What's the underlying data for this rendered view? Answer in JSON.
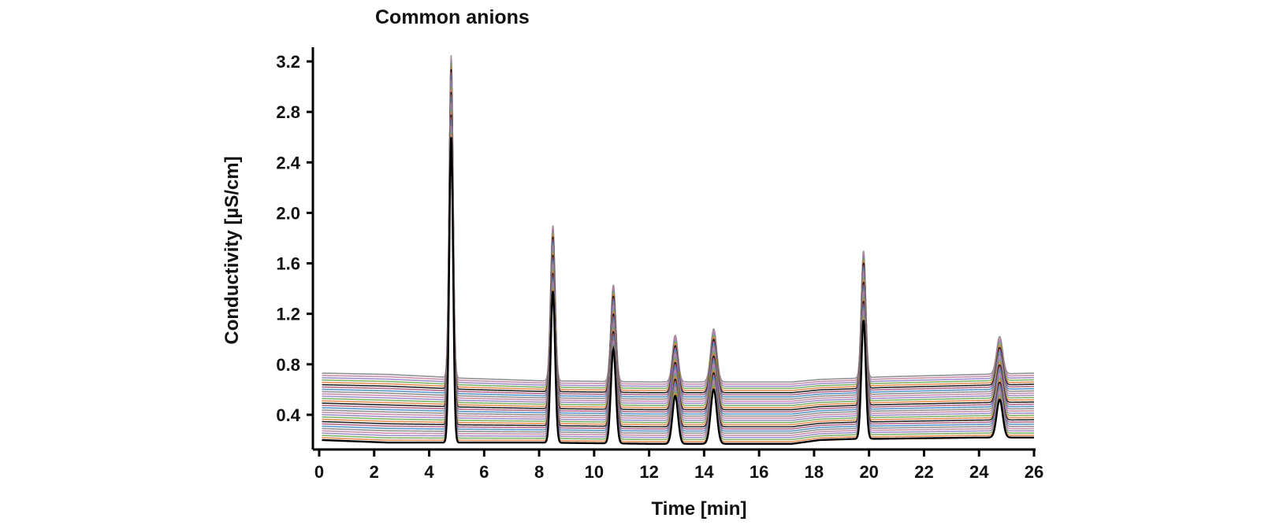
{
  "chart_data": {
    "type": "line",
    "title": "Common anions",
    "xlabel": "Time [min]",
    "ylabel": "Conductivity [µS/cm]",
    "xlim": [
      0,
      26
    ],
    "ylim": [
      0.15,
      3.3
    ],
    "x_ticks": [
      0,
      2,
      4,
      6,
      8,
      10,
      12,
      14,
      16,
      18,
      20,
      22,
      24,
      26
    ],
    "y_ticks": [
      0.4,
      0.8,
      1.2,
      1.6,
      2.0,
      2.4,
      2.8,
      3.2
    ],
    "y_tick_labels": [
      "0.4",
      "0.8",
      "1.2",
      "1.6",
      "2.0",
      "2.4",
      "2.8",
      "3.2"
    ],
    "grid": false,
    "legend": "none",
    "trace_count": 30,
    "trace_colors": [
      "#000000",
      "#e07b39",
      "#6aa84f",
      "#8e7cc3",
      "#c27ba0",
      "#7f7f7f",
      "#3d85c6",
      "#a64d79"
    ],
    "baseline_bottom": {
      "x": [
        0.1,
        2.5,
        4.4,
        5.2,
        8.0,
        12.0,
        17.2,
        18.2,
        19.6,
        20.4,
        24.0,
        26.0
      ],
      "y": [
        0.2,
        0.18,
        0.18,
        0.18,
        0.18,
        0.17,
        0.17,
        0.2,
        0.21,
        0.21,
        0.22,
        0.22
      ]
    },
    "baseline_top": {
      "x": [
        0.1,
        2.5,
        4.4,
        5.2,
        8.0,
        12.0,
        17.2,
        18.2,
        19.6,
        20.4,
        24.0,
        26.0
      ],
      "y": [
        0.73,
        0.72,
        0.7,
        0.69,
        0.67,
        0.66,
        0.66,
        0.68,
        0.69,
        0.7,
        0.72,
        0.73
      ]
    },
    "peaks": [
      {
        "time": 4.8,
        "height_bottom": 2.6,
        "height_top": 3.25,
        "width": 0.07
      },
      {
        "time": 8.5,
        "height_bottom": 1.38,
        "height_top": 1.9,
        "width": 0.08
      },
      {
        "time": 10.7,
        "height_bottom": 0.92,
        "height_top": 1.43,
        "width": 0.09
      },
      {
        "time": 12.95,
        "height_bottom": 0.55,
        "height_top": 1.03,
        "width": 0.1
      },
      {
        "time": 14.35,
        "height_bottom": 0.6,
        "height_top": 1.08,
        "width": 0.11
      },
      {
        "time": 19.8,
        "height_bottom": 1.15,
        "height_top": 1.7,
        "width": 0.08
      },
      {
        "time": 24.75,
        "height_bottom": 0.52,
        "height_top": 1.02,
        "width": 0.11
      }
    ]
  }
}
